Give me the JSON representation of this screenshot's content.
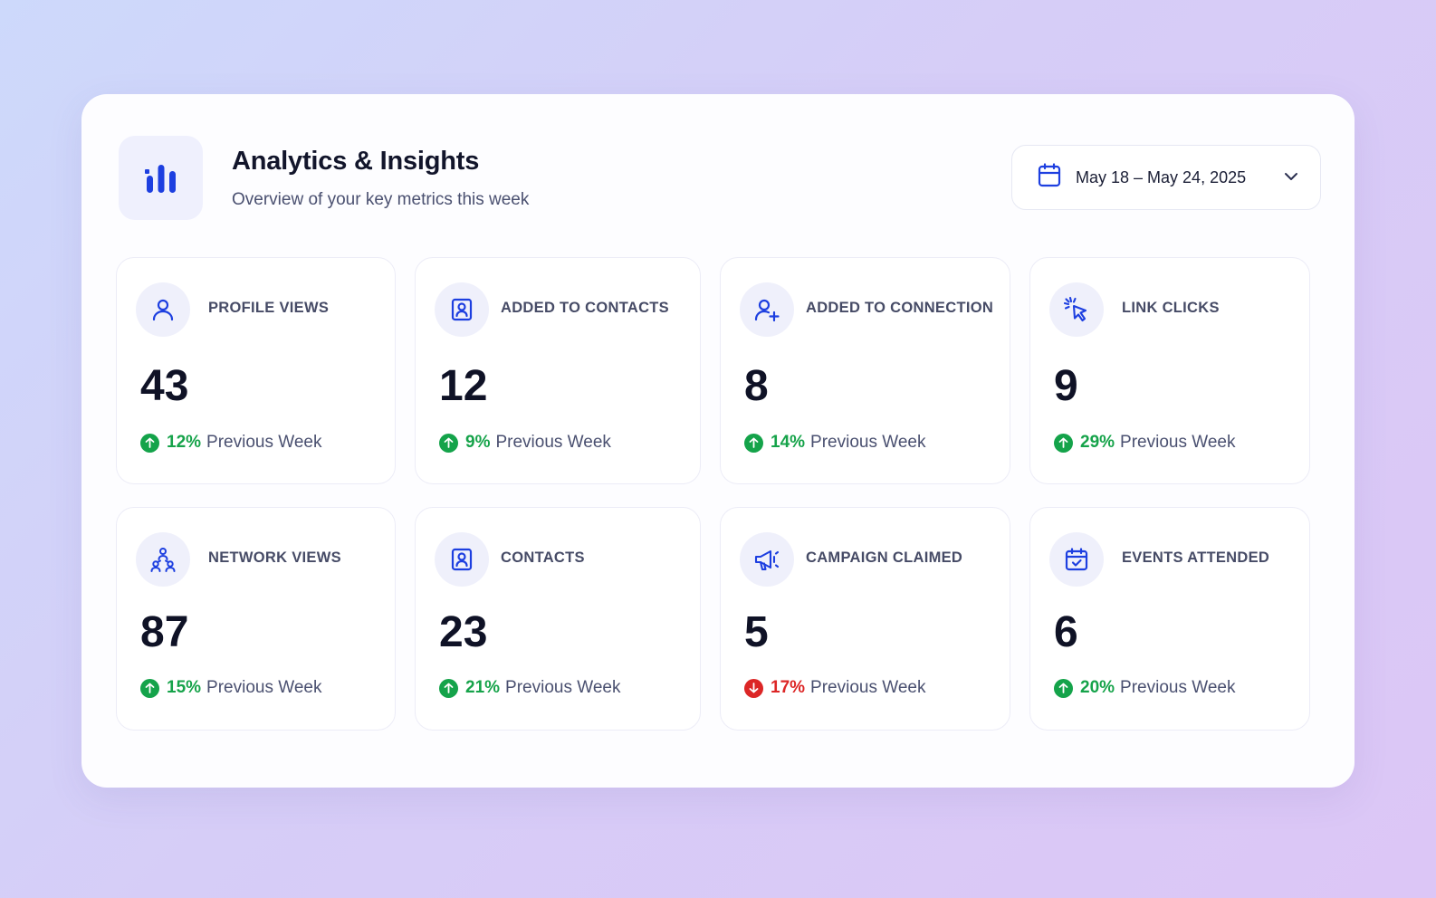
{
  "header": {
    "title": "Analytics & Insights",
    "subtitle": "Overview of your key metrics this week",
    "icon": "bar-chart-icon"
  },
  "date_range": {
    "label": "May 18 – May 24, 2025",
    "icon": "calendar-icon"
  },
  "colors": {
    "accent": "#1d3fe0",
    "positive": "#16a34a",
    "negative": "#dc2626"
  },
  "metrics": [
    {
      "label": "PROFILE VIEWS",
      "value": "43",
      "change": "12%",
      "direction": "up",
      "comparison": "Previous Week",
      "icon": "user-icon"
    },
    {
      "label": "ADDED TO CONTACTS",
      "value": "12",
      "change": "9%",
      "direction": "up",
      "comparison": "Previous Week",
      "icon": "contact-card-icon"
    },
    {
      "label": "ADDED TO CONNECTION",
      "value": "8",
      "change": "14%",
      "direction": "up",
      "comparison": "Previous Week",
      "icon": "user-plus-icon"
    },
    {
      "label": "LINK CLICKS",
      "value": "9",
      "change": "29%",
      "direction": "up",
      "comparison": "Previous Week",
      "icon": "cursor-click-icon"
    },
    {
      "label": "NETWORK VIEWS",
      "value": "87",
      "change": "15%",
      "direction": "up",
      "comparison": "Previous Week",
      "icon": "network-icon"
    },
    {
      "label": "CONTACTS",
      "value": "23",
      "change": "21%",
      "direction": "up",
      "comparison": "Previous Week",
      "icon": "contact-card-icon"
    },
    {
      "label": "CAMPAIGN CLAIMED",
      "value": "5",
      "change": "17%",
      "direction": "down",
      "comparison": "Previous Week",
      "icon": "megaphone-icon"
    },
    {
      "label": "EVENTS ATTENDED",
      "value": "6",
      "change": "20%",
      "direction": "up",
      "comparison": "Previous Week",
      "icon": "calendar-check-icon"
    }
  ]
}
